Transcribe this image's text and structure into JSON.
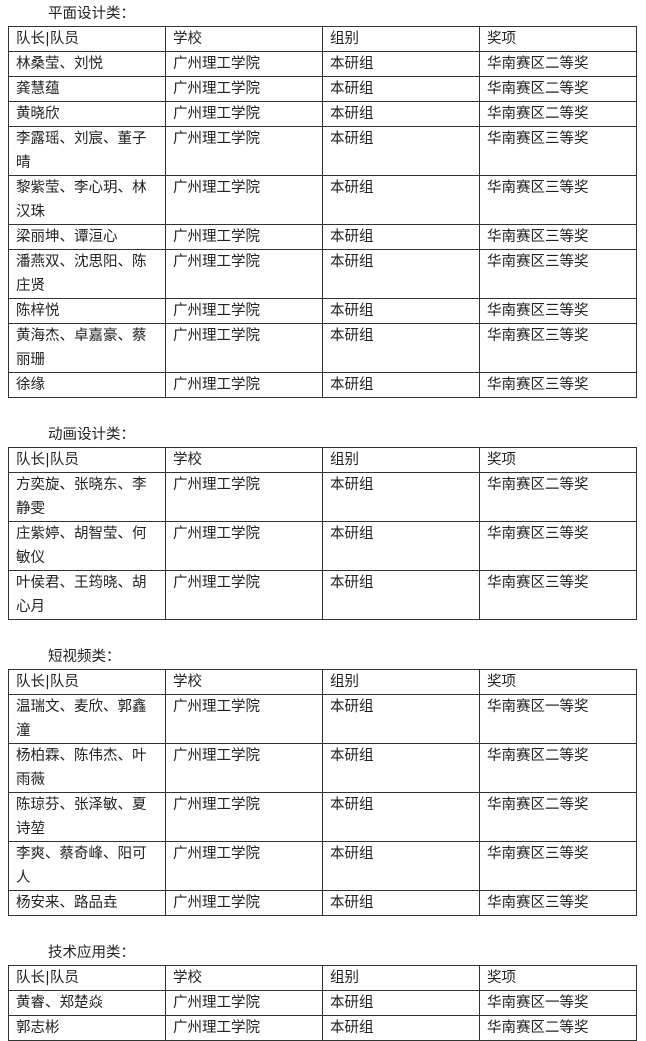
{
  "headers": [
    "队长|队员",
    "学校",
    "组别",
    "奖项"
  ],
  "sections": [
    {
      "title": "平面设计类：",
      "rows": [
        [
          "林桑莹、刘悦",
          "广州理工学院",
          "本研组",
          "华南赛区二等奖"
        ],
        [
          "龚慧蕴",
          "广州理工学院",
          "本研组",
          "华南赛区二等奖"
        ],
        [
          "黄晓欣",
          "广州理工学院",
          "本研组",
          "华南赛区二等奖"
        ],
        [
          "李露瑶、刘宸、董子晴",
          "广州理工学院",
          "本研组",
          "华南赛区三等奖"
        ],
        [
          "黎紫莹、李心玥、林汉珠",
          "广州理工学院",
          "本研组",
          "华南赛区三等奖"
        ],
        [
          "梁丽坤、谭洹心",
          "广州理工学院",
          "本研组",
          "华南赛区三等奖"
        ],
        [
          "潘燕双、沈思阳、陈庄贤",
          "广州理工学院",
          "本研组",
          "华南赛区三等奖"
        ],
        [
          "陈梓悦",
          "广州理工学院",
          "本研组",
          "华南赛区三等奖"
        ],
        [
          "黄海杰、卓嘉豪、蔡丽珊",
          "广州理工学院",
          "本研组",
          "华南赛区三等奖"
        ],
        [
          "徐缘",
          "广州理工学院",
          "本研组",
          "华南赛区三等奖"
        ]
      ]
    },
    {
      "title": "动画设计类：",
      "rows": [
        [
          "方奕旋、张晓东、李静雯",
          "广州理工学院",
          "本研组",
          "华南赛区二等奖"
        ],
        [
          "庄紫婷、胡智莹、何敏仪",
          "广州理工学院",
          "本研组",
          "华南赛区三等奖"
        ],
        [
          "叶侯君、王筠晓、胡心月",
          "广州理工学院",
          "本研组",
          "华南赛区三等奖"
        ]
      ]
    },
    {
      "title": "短视频类：",
      "rows": [
        [
          "温瑞文、麦欣、郭鑫潼",
          "广州理工学院",
          "本研组",
          "华南赛区一等奖"
        ],
        [
          "杨柏霖、陈伟杰、叶雨薇",
          "广州理工学院",
          "本研组",
          "华南赛区二等奖"
        ],
        [
          "陈琼芬、张泽敏、夏诗堃",
          "广州理工学院",
          "本研组",
          "华南赛区二等奖"
        ],
        [
          "李爽、蔡奇峰、阳可人",
          "广州理工学院",
          "本研组",
          "华南赛区三等奖"
        ],
        [
          "杨安来、路品垚",
          "广州理工学院",
          "本研组",
          "华南赛区三等奖"
        ]
      ]
    },
    {
      "title": "技术应用类：",
      "rows": [
        [
          "黄睿、郑楚焱",
          "广州理工学院",
          "本研组",
          "华南赛区一等奖"
        ],
        [
          "郭志彬",
          "广州理工学院",
          "本研组",
          "华南赛区二等奖"
        ]
      ]
    }
  ]
}
